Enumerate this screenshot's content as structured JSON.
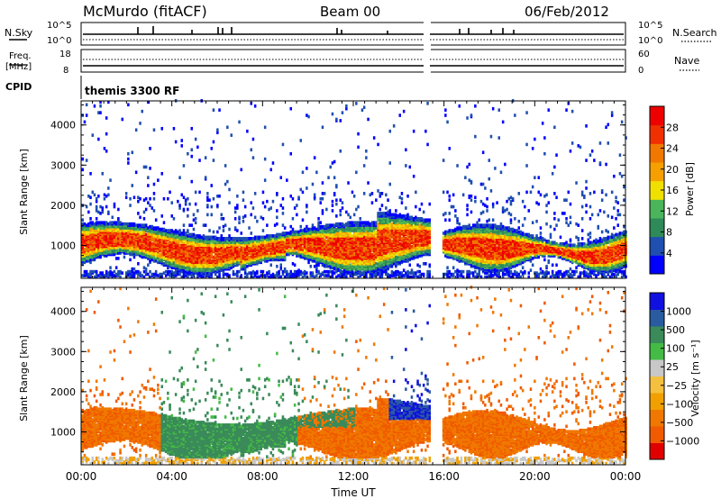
{
  "header": {
    "station": "McMurdo (fitACF)",
    "beam": "Beam 00",
    "date": "06/Feb/2012"
  },
  "top_panels": {
    "nsky_label": "N.Sky",
    "nsearch_label": "N.Search",
    "noise_ticks": [
      "10^5",
      "10^0"
    ],
    "noise_ticks_right": [
      "10^5",
      "10^0"
    ],
    "freq_label": [
      "Freq.",
      "[MHz]"
    ],
    "freq_ticks": [
      "18",
      "8"
    ],
    "nave_label": "Nave",
    "nave_ticks": [
      "60",
      "0"
    ],
    "cpid_label": "CPID",
    "cpid_value": "themis 3300 RF"
  },
  "colors": {
    "power_scale": [
      "#0000ff",
      "#1f4fb0",
      "#2f8a5a",
      "#4ab55a",
      "#f0e000",
      "#f5a000",
      "#f07800",
      "#f03000",
      "#ee0000"
    ],
    "velocity_scale": [
      "#e00000",
      "#f05a00",
      "#f07800",
      "#f0a000",
      "#f5c040",
      "#c8c8c8",
      "#44bb44",
      "#3a8a5a",
      "#2a5aa0",
      "#1010e0"
    ]
  },
  "chart_data": [
    {
      "type": "heatmap",
      "name": "power",
      "ylabel": "Slant Range [km]",
      "yticks": [
        "4000",
        "3000",
        "2000",
        "1000"
      ],
      "ylim": [
        180,
        4600
      ],
      "colorbar_label": "Power [dB]",
      "colorbar_ticks": [
        "28",
        "24",
        "20",
        "16",
        "12",
        "8",
        "4"
      ],
      "data_gap_hours": [
        15.4,
        15.9
      ]
    },
    {
      "type": "heatmap",
      "name": "velocity",
      "ylabel": "Slant Range [km]",
      "yticks": [
        "4000",
        "3000",
        "2000",
        "1000"
      ],
      "ylim": [
        180,
        4600
      ],
      "colorbar_label": "Velocity [m s⁻¹]",
      "colorbar_ticks": [
        "1000",
        "500",
        "100",
        "25",
        "−25",
        "−100",
        "−500",
        "−1000"
      ],
      "data_gap_hours": [
        15.4,
        15.9
      ]
    }
  ],
  "x_axis": {
    "ticks": [
      "00:00",
      "04:00",
      "08:00",
      "12:00",
      "16:00",
      "20:00",
      "00:00"
    ],
    "label": "Time UT"
  }
}
